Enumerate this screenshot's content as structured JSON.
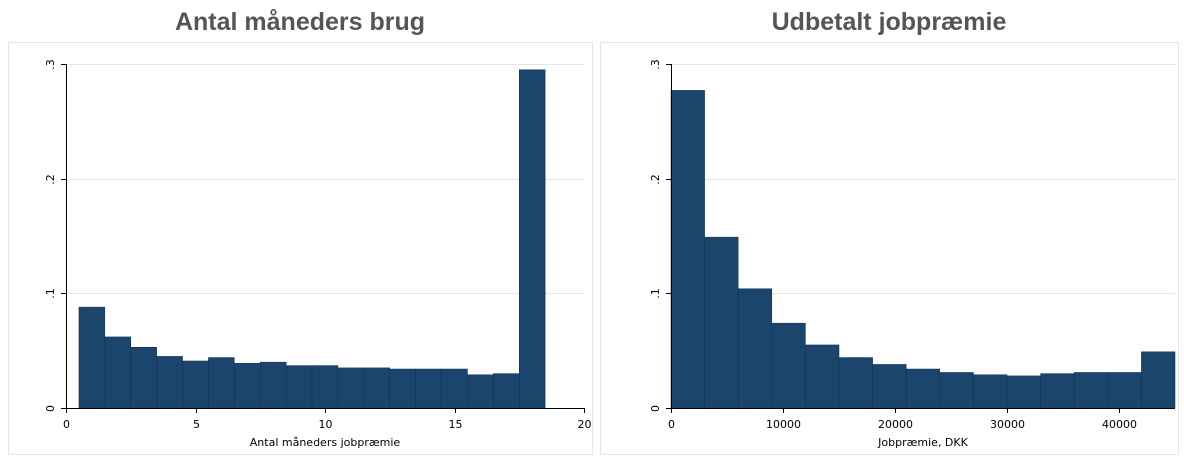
{
  "chart_data": [
    {
      "type": "bar",
      "title": "Antal måneders brug",
      "xlabel": "Antal måneders jobpræmie",
      "ylabel": "",
      "xlim": [
        0,
        20
      ],
      "ylim": [
        0,
        0.3
      ],
      "xticks": [
        0,
        5,
        10,
        15,
        20
      ],
      "xtick_labels": [
        "0",
        "5",
        "10",
        "15",
        "20"
      ],
      "yticks": [
        0,
        0.1,
        0.2,
        0.3
      ],
      "ytick_labels": [
        "0",
        ".1",
        ".2",
        ".3"
      ],
      "grid": true,
      "bins": [
        {
          "x0": 0.5,
          "x1": 1.5,
          "value": 0.088
        },
        {
          "x0": 1.5,
          "x1": 2.5,
          "value": 0.062
        },
        {
          "x0": 2.5,
          "x1": 3.5,
          "value": 0.053
        },
        {
          "x0": 3.5,
          "x1": 4.5,
          "value": 0.045
        },
        {
          "x0": 4.5,
          "x1": 5.5,
          "value": 0.041
        },
        {
          "x0": 5.5,
          "x1": 6.5,
          "value": 0.044
        },
        {
          "x0": 6.5,
          "x1": 7.5,
          "value": 0.039
        },
        {
          "x0": 7.5,
          "x1": 8.5,
          "value": 0.04
        },
        {
          "x0": 8.5,
          "x1": 9.5,
          "value": 0.037
        },
        {
          "x0": 9.5,
          "x1": 10.5,
          "value": 0.037
        },
        {
          "x0": 10.5,
          "x1": 11.5,
          "value": 0.035
        },
        {
          "x0": 11.5,
          "x1": 12.5,
          "value": 0.035
        },
        {
          "x0": 12.5,
          "x1": 13.5,
          "value": 0.034
        },
        {
          "x0": 13.5,
          "x1": 14.5,
          "value": 0.034
        },
        {
          "x0": 14.5,
          "x1": 15.5,
          "value": 0.034
        },
        {
          "x0": 15.5,
          "x1": 16.5,
          "value": 0.029
        },
        {
          "x0": 16.5,
          "x1": 17.5,
          "value": 0.03
        },
        {
          "x0": 17.5,
          "x1": 18.5,
          "value": 0.295
        }
      ],
      "bar_color": "#1b456d"
    },
    {
      "type": "bar",
      "title": "Udbetalt jobpræmie",
      "xlabel": "Jobpræmie, DKK",
      "ylabel": "",
      "xlim": [
        0,
        45000
      ],
      "ylim": [
        0,
        0.3
      ],
      "xticks": [
        0,
        10000,
        20000,
        30000,
        40000
      ],
      "xtick_labels": [
        "0",
        "10000",
        "20000",
        "30000",
        "40000"
      ],
      "yticks": [
        0,
        0.1,
        0.2,
        0.3
      ],
      "ytick_labels": [
        "0",
        ".1",
        ".2",
        ".3"
      ],
      "grid": true,
      "bins": [
        {
          "x0": 0,
          "x1": 3000,
          "value": 0.277
        },
        {
          "x0": 3000,
          "x1": 6000,
          "value": 0.149
        },
        {
          "x0": 6000,
          "x1": 9000,
          "value": 0.104
        },
        {
          "x0": 9000,
          "x1": 12000,
          "value": 0.074
        },
        {
          "x0": 12000,
          "x1": 15000,
          "value": 0.055
        },
        {
          "x0": 15000,
          "x1": 18000,
          "value": 0.044
        },
        {
          "x0": 18000,
          "x1": 21000,
          "value": 0.038
        },
        {
          "x0": 21000,
          "x1": 24000,
          "value": 0.034
        },
        {
          "x0": 24000,
          "x1": 27000,
          "value": 0.031
        },
        {
          "x0": 27000,
          "x1": 30000,
          "value": 0.029
        },
        {
          "x0": 30000,
          "x1": 33000,
          "value": 0.028
        },
        {
          "x0": 33000,
          "x1": 36000,
          "value": 0.03
        },
        {
          "x0": 36000,
          "x1": 39000,
          "value": 0.031
        },
        {
          "x0": 39000,
          "x1": 42000,
          "value": 0.031
        },
        {
          "x0": 42000,
          "x1": 45000,
          "value": 0.049
        }
      ],
      "bar_color": "#1b456d"
    }
  ]
}
